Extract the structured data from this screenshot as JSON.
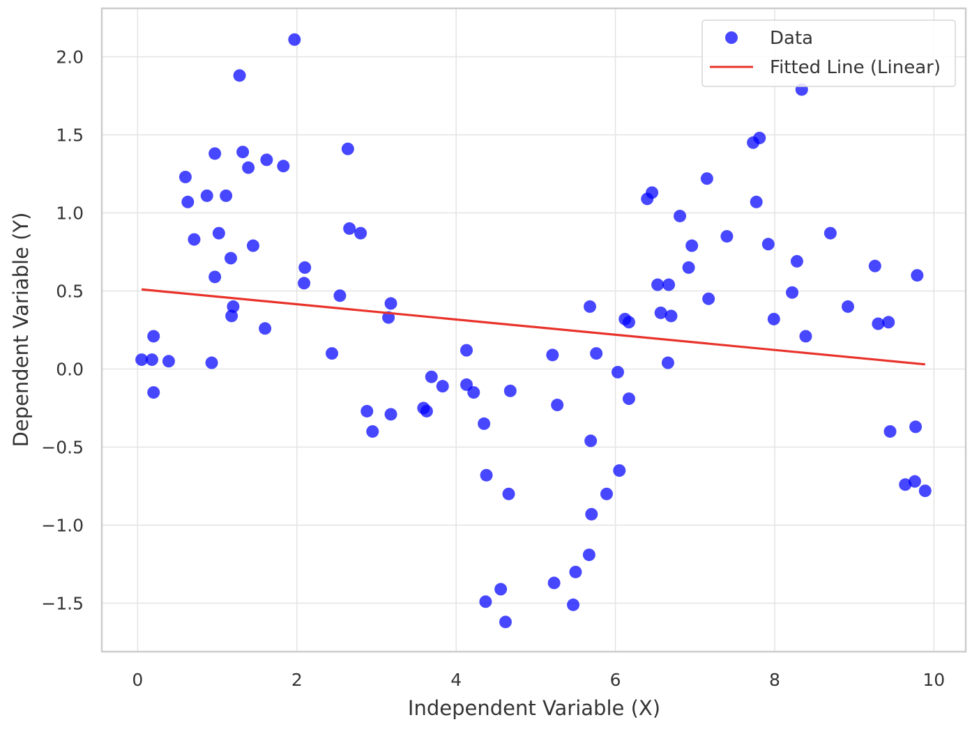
{
  "chart_data": {
    "type": "scatter",
    "title": "",
    "xlabel": "Independent Variable (X)",
    "ylabel": "Dependent Variable (Y)",
    "xlim": [
      -0.45,
      10.4
    ],
    "ylim": [
      -1.81,
      2.31
    ],
    "xticks": [
      0,
      2,
      4,
      6,
      8,
      10
    ],
    "yticks": [
      -1.5,
      -1.0,
      -0.5,
      0.0,
      0.5,
      1.0,
      1.5,
      2.0
    ],
    "xtick_labels": [
      "0",
      "2",
      "4",
      "6",
      "8",
      "10"
    ],
    "ytick_labels": [
      "−1.5",
      "−1.0",
      "−0.5",
      "0.0",
      "0.5",
      "1.0",
      "1.5",
      "2.0"
    ],
    "grid": true,
    "legend": {
      "position": "top-right",
      "entries": [
        {
          "label": "Data",
          "marker": "circle",
          "color": "#0000ff"
        },
        {
          "label": "Fitted Line (Linear)",
          "marker": "line",
          "color": "#e8322a"
        }
      ]
    },
    "series": [
      {
        "name": "Data",
        "type": "scatter",
        "color": "#0000ff",
        "points": [
          [
            0.05,
            0.06
          ],
          [
            0.18,
            0.06
          ],
          [
            0.2,
            0.21
          ],
          [
            0.2,
            -0.15
          ],
          [
            0.39,
            0.05
          ],
          [
            0.6,
            1.23
          ],
          [
            0.63,
            1.07
          ],
          [
            0.71,
            0.83
          ],
          [
            0.87,
            1.11
          ],
          [
            0.93,
            0.04
          ],
          [
            0.97,
            1.38
          ],
          [
            0.97,
            0.59
          ],
          [
            1.02,
            0.87
          ],
          [
            1.11,
            1.11
          ],
          [
            1.17,
            0.71
          ],
          [
            1.18,
            0.34
          ],
          [
            1.2,
            0.4
          ],
          [
            1.28,
            1.88
          ],
          [
            1.32,
            1.39
          ],
          [
            1.39,
            1.29
          ],
          [
            1.45,
            0.79
          ],
          [
            1.6,
            0.26
          ],
          [
            1.62,
            1.34
          ],
          [
            1.83,
            1.3
          ],
          [
            1.97,
            2.11
          ],
          [
            2.09,
            0.55
          ],
          [
            2.1,
            0.65
          ],
          [
            2.44,
            0.1
          ],
          [
            2.54,
            0.47
          ],
          [
            2.64,
            1.41
          ],
          [
            2.66,
            0.9
          ],
          [
            2.8,
            0.87
          ],
          [
            2.88,
            -0.27
          ],
          [
            2.95,
            -0.4
          ],
          [
            3.15,
            0.33
          ],
          [
            3.18,
            0.42
          ],
          [
            3.18,
            -0.29
          ],
          [
            3.59,
            -0.25
          ],
          [
            3.63,
            -0.27
          ],
          [
            3.69,
            -0.05
          ],
          [
            3.83,
            -0.11
          ],
          [
            4.13,
            0.12
          ],
          [
            4.13,
            -0.1
          ],
          [
            4.22,
            -0.15
          ],
          [
            4.35,
            -0.35
          ],
          [
            4.37,
            -1.49
          ],
          [
            4.38,
            -0.68
          ],
          [
            4.56,
            -1.41
          ],
          [
            4.62,
            -1.62
          ],
          [
            4.66,
            -0.8
          ],
          [
            4.68,
            -0.14
          ],
          [
            5.21,
            0.09
          ],
          [
            5.23,
            -1.37
          ],
          [
            5.27,
            -0.23
          ],
          [
            5.47,
            -1.51
          ],
          [
            5.5,
            -1.3
          ],
          [
            5.67,
            -1.19
          ],
          [
            5.68,
            0.4
          ],
          [
            5.69,
            -0.46
          ],
          [
            5.7,
            -0.93
          ],
          [
            5.76,
            0.1
          ],
          [
            5.89,
            -0.8
          ],
          [
            6.03,
            -0.02
          ],
          [
            6.05,
            -0.65
          ],
          [
            6.12,
            0.32
          ],
          [
            6.17,
            0.3
          ],
          [
            6.17,
            -0.19
          ],
          [
            6.4,
            1.09
          ],
          [
            6.46,
            1.13
          ],
          [
            6.53,
            0.54
          ],
          [
            6.57,
            0.36
          ],
          [
            6.66,
            0.04
          ],
          [
            6.67,
            0.54
          ],
          [
            6.7,
            0.34
          ],
          [
            6.81,
            0.98
          ],
          [
            6.92,
            0.65
          ],
          [
            6.96,
            0.79
          ],
          [
            7.15,
            1.22
          ],
          [
            7.17,
            0.45
          ],
          [
            7.4,
            0.85
          ],
          [
            7.73,
            1.45
          ],
          [
            7.77,
            1.07
          ],
          [
            7.81,
            1.48
          ],
          [
            7.92,
            0.8
          ],
          [
            7.99,
            0.32
          ],
          [
            8.22,
            0.49
          ],
          [
            8.28,
            0.69
          ],
          [
            8.34,
            1.79
          ],
          [
            8.39,
            0.21
          ],
          [
            8.7,
            0.87
          ],
          [
            8.92,
            0.4
          ],
          [
            9.26,
            0.66
          ],
          [
            9.3,
            0.29
          ],
          [
            9.43,
            0.3
          ],
          [
            9.45,
            -0.4
          ],
          [
            9.64,
            -0.74
          ],
          [
            9.76,
            -0.72
          ],
          [
            9.77,
            -0.37
          ],
          [
            9.79,
            0.6
          ],
          [
            9.89,
            -0.78
          ]
        ]
      },
      {
        "name": "Fitted Line (Linear)",
        "type": "line",
        "color": "#e8322a",
        "points": [
          [
            0.05,
            0.51
          ],
          [
            9.89,
            0.03
          ]
        ]
      }
    ]
  }
}
